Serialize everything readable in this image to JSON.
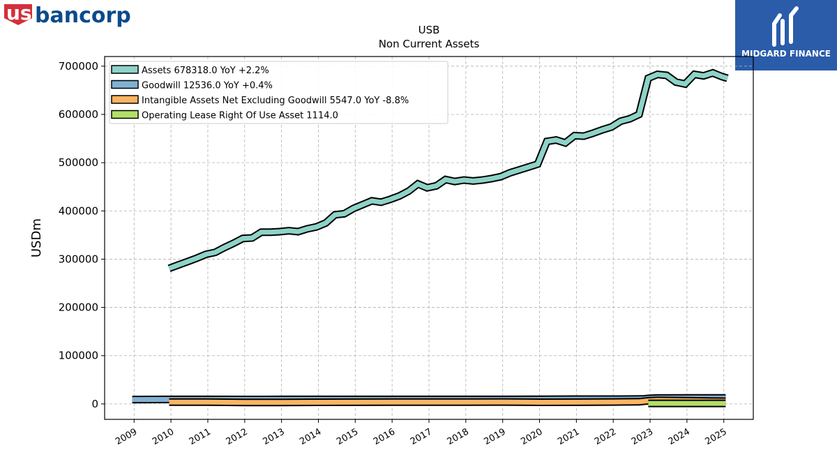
{
  "logo": {
    "text_us": "us",
    "text_rest": "bancorp",
    "colors": {
      "red": "#d42e3c",
      "blue": "#0c4a8c"
    }
  },
  "brand": {
    "name": "MIDGARD FINANCE",
    "bg": "#2a5caa"
  },
  "chart_data": {
    "type": "area",
    "title": "USB",
    "subtitle": "Non Current  Assets",
    "ylabel": "USDm",
    "xlabel": "",
    "ylim": [
      -32000,
      720000
    ],
    "yticks": [
      0,
      100000,
      200000,
      300000,
      400000,
      500000,
      600000,
      700000
    ],
    "ytick_labels": [
      "0",
      "100000",
      "200000",
      "300000",
      "400000",
      "500000",
      "600000",
      "700000"
    ],
    "xlim": [
      2008.2,
      2025.8
    ],
    "xticks": [
      2009,
      2010,
      2011,
      2012,
      2013,
      2014,
      2015,
      2016,
      2017,
      2018,
      2019,
      2020,
      2021,
      2022,
      2023,
      2024,
      2025
    ],
    "xtick_labels": [
      "2009",
      "2010",
      "2011",
      "2012",
      "2013",
      "2014",
      "2015",
      "2016",
      "2017",
      "2018",
      "2019",
      "2020",
      "2021",
      "2022",
      "2023",
      "2024",
      "2025"
    ],
    "grid": true,
    "legend_position": "top-left",
    "series": [
      {
        "name": "Assets",
        "legend": "Assets  678318.0 YoY +2.2%",
        "color": "#8dd3c7",
        "x": [
          2009.95,
          2010.2,
          2010.45,
          2010.7,
          2010.95,
          2011.2,
          2011.45,
          2011.7,
          2011.95,
          2012.2,
          2012.45,
          2012.7,
          2012.95,
          2013.2,
          2013.45,
          2013.7,
          2013.95,
          2014.2,
          2014.45,
          2014.7,
          2014.95,
          2015.2,
          2015.45,
          2015.7,
          2015.95,
          2016.2,
          2016.45,
          2016.7,
          2016.95,
          2017.2,
          2017.45,
          2017.7,
          2017.95,
          2018.2,
          2018.45,
          2018.7,
          2018.95,
          2019.2,
          2019.45,
          2019.7,
          2019.95,
          2020.2,
          2020.45,
          2020.7,
          2020.95,
          2021.2,
          2021.45,
          2021.7,
          2021.95,
          2022.2,
          2022.45,
          2022.7,
          2022.95,
          2023.2,
          2023.45,
          2023.7,
          2023.95,
          2024.2,
          2024.45,
          2024.7,
          2024.95,
          2025.1
        ],
        "values": [
          281000,
          288000,
          295000,
          302000,
          310000,
          314000,
          324000,
          333000,
          343000,
          344000,
          356000,
          356000,
          357000,
          359000,
          357000,
          363000,
          367000,
          375000,
          392000,
          394000,
          405000,
          413000,
          421000,
          418000,
          424000,
          431000,
          441000,
          456000,
          448000,
          452000,
          465000,
          461000,
          464000,
          462000,
          464000,
          467000,
          471000,
          479000,
          485000,
          491000,
          497000,
          544000,
          547000,
          541000,
          556000,
          555000,
          561000,
          568000,
          574000,
          586000,
          591000,
          600000,
          675000,
          683000,
          681000,
          667000,
          663000,
          683000,
          680000,
          686000,
          678318,
          675000
        ]
      },
      {
        "name": "Goodwill",
        "legend": "Goodwill  12536.0 YoY +0.4%",
        "color": "#80b1d3",
        "x": [
          2008.95,
          2010.0,
          2011.0,
          2012.0,
          2013.0,
          2014.0,
          2015.0,
          2016.0,
          2017.0,
          2018.0,
          2019.0,
          2020.0,
          2021.0,
          2022.0,
          2022.8,
          2022.95,
          2023.2,
          2024.0,
          2025.05
        ],
        "values": [
          9000,
          9300,
          9300,
          9200,
          9300,
          9400,
          9400,
          9300,
          9400,
          9400,
          9400,
          9700,
          9900,
          10000,
          10300,
          11400,
          12300,
          12500,
          12536
        ]
      },
      {
        "name": "Intangible Assets Net Excluding Goodwill",
        "legend": "Intangible Assets Net Excluding Goodwill  5547.0 YoY -8.8%",
        "color": "#fdb462",
        "x": [
          2009.95,
          2011.0,
          2012.0,
          2013.0,
          2014.0,
          2015.0,
          2016.0,
          2017.0,
          2018.0,
          2019.0,
          2020.0,
          2021.0,
          2022.0,
          2022.7,
          2022.95,
          2023.2,
          2024.0,
          2025.05
        ],
        "values": [
          3800,
          3700,
          3200,
          3000,
          3400,
          3600,
          3700,
          3800,
          3900,
          4000,
          3500,
          3600,
          4000,
          4500,
          6500,
          7400,
          6600,
          5547
        ]
      },
      {
        "name": "Operating Lease Right Of Use Asset",
        "legend": "Operating Lease Right Of Use Asset  1114.0",
        "color": "#b3de69",
        "x": [
          2022.95,
          2025.05
        ],
        "values": [
          1114,
          1114
        ]
      }
    ]
  }
}
